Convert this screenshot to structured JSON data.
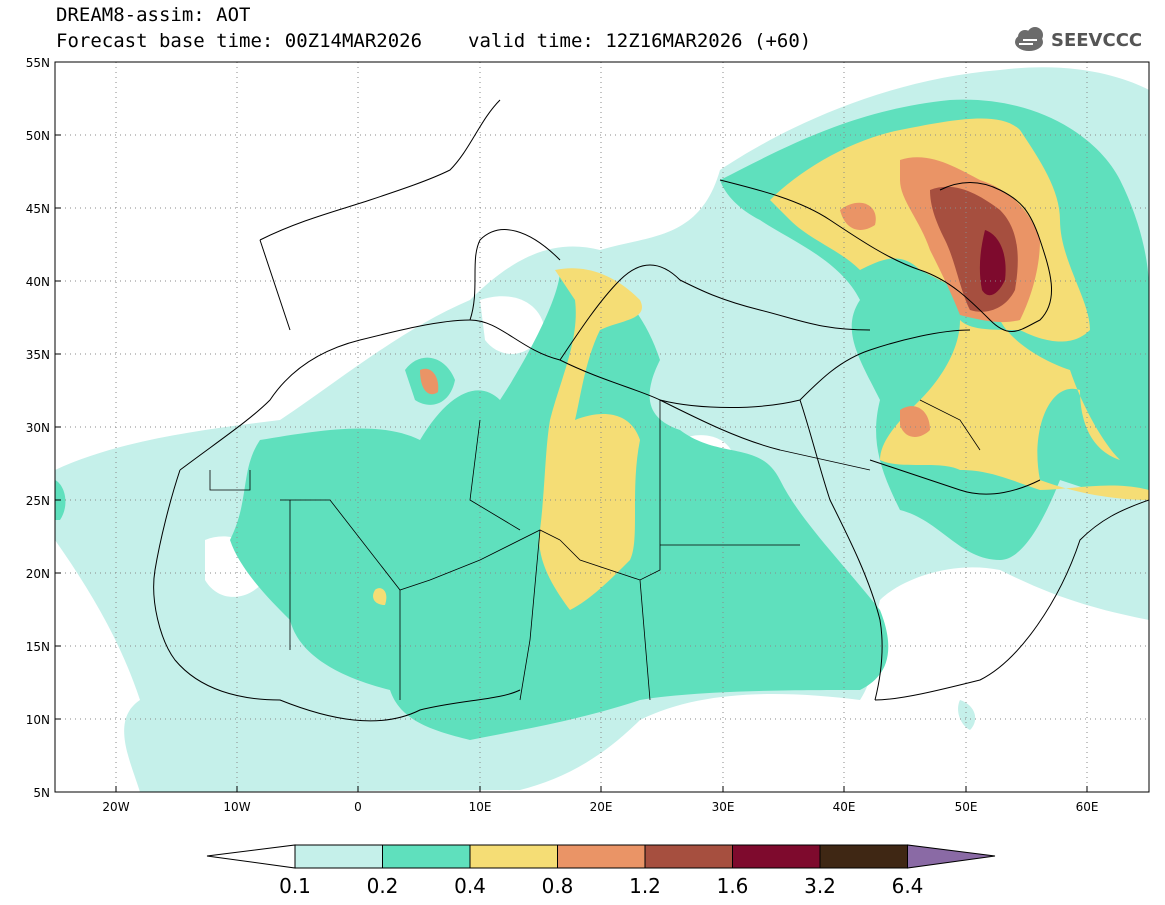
{
  "header": {
    "title_line1": "DREAM8-assim: AOT",
    "title_line2_base": "Forecast base time: 00Z14MAR2026",
    "title_line2_valid": "valid time: 12Z16MAR2026 (+60)"
  },
  "logo": {
    "text": "SEEVCCC",
    "icon": "cloud-icon"
  },
  "map": {
    "lat_labels": [
      "55N",
      "50N",
      "45N",
      "40N",
      "35N",
      "30N",
      "25N",
      "20N",
      "15N",
      "10N",
      "5N"
    ],
    "lon_labels": [
      "20W",
      "10W",
      "0",
      "10E",
      "20E",
      "30E",
      "40E",
      "50E",
      "60E"
    ]
  },
  "colorbar": {
    "levels": [
      "0.1",
      "0.2",
      "0.4",
      "0.8",
      "1.2",
      "1.6",
      "3.2",
      "6.4"
    ],
    "colors": [
      "#c5f0ea",
      "#5fe0bd",
      "#f5dd75",
      "#ea9466",
      "#a64f3f",
      "#7e0a2d",
      "#3f2714",
      "#8a6aa5"
    ],
    "under_color": "#ffffff"
  }
}
